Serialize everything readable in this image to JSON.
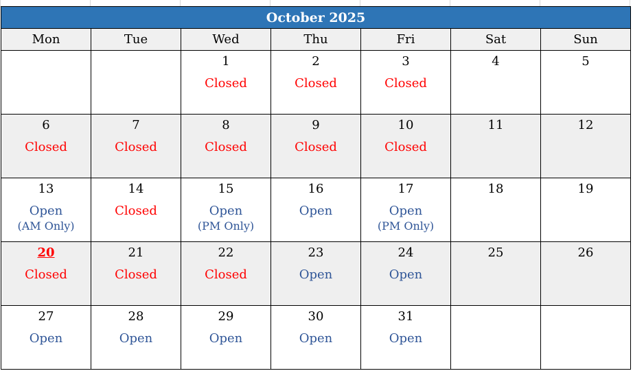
{
  "calendar": {
    "title": "October 2025",
    "weekdays": [
      "Mon",
      "Tue",
      "Wed",
      "Thu",
      "Fri",
      "Sat",
      "Sun"
    ],
    "weeks": [
      [
        {},
        {},
        {
          "day": "1",
          "status": "Closed",
          "kind": "closed"
        },
        {
          "day": "2",
          "status": "Closed",
          "kind": "closed"
        },
        {
          "day": "3",
          "status": "Closed",
          "kind": "closed"
        },
        {
          "day": "4"
        },
        {
          "day": "5"
        }
      ],
      [
        {
          "day": "6",
          "status": "Closed",
          "kind": "closed"
        },
        {
          "day": "7",
          "status": "Closed",
          "kind": "closed"
        },
        {
          "day": "8",
          "status": "Closed",
          "kind": "closed"
        },
        {
          "day": "9",
          "status": "Closed",
          "kind": "closed"
        },
        {
          "day": "10",
          "status": "Closed",
          "kind": "closed"
        },
        {
          "day": "11"
        },
        {
          "day": "12"
        }
      ],
      [
        {
          "day": "13",
          "status": "Open",
          "kind": "open",
          "note": "(AM Only)"
        },
        {
          "day": "14",
          "status": "Closed",
          "kind": "closed"
        },
        {
          "day": "15",
          "status": "Open",
          "kind": "open",
          "note": "(PM Only)"
        },
        {
          "day": "16",
          "status": "Open",
          "kind": "open"
        },
        {
          "day": "17",
          "status": "Open",
          "kind": "open",
          "note": "(PM Only)"
        },
        {
          "day": "18"
        },
        {
          "day": "19"
        }
      ],
      [
        {
          "day": "20",
          "status": "Closed",
          "kind": "closed",
          "highlight": true
        },
        {
          "day": "21",
          "status": "Closed",
          "kind": "closed"
        },
        {
          "day": "22",
          "status": "Closed",
          "kind": "closed"
        },
        {
          "day": "23",
          "status": "Open",
          "kind": "open"
        },
        {
          "day": "24",
          "status": "Open",
          "kind": "open"
        },
        {
          "day": "25"
        },
        {
          "day": "26"
        }
      ],
      [
        {
          "day": "27",
          "status": "Open",
          "kind": "open"
        },
        {
          "day": "28",
          "status": "Open",
          "kind": "open"
        },
        {
          "day": "29",
          "status": "Open",
          "kind": "open"
        },
        {
          "day": "30",
          "status": "Open",
          "kind": "open"
        },
        {
          "day": "31",
          "status": "Open",
          "kind": "open"
        },
        {},
        {}
      ]
    ],
    "shaded_weeks": [
      1,
      3
    ]
  },
  "colors": {
    "header_bg": "#2e75b6",
    "closed": "#ff0000",
    "open": "#2f5597",
    "shaded_row": "#efefef"
  }
}
